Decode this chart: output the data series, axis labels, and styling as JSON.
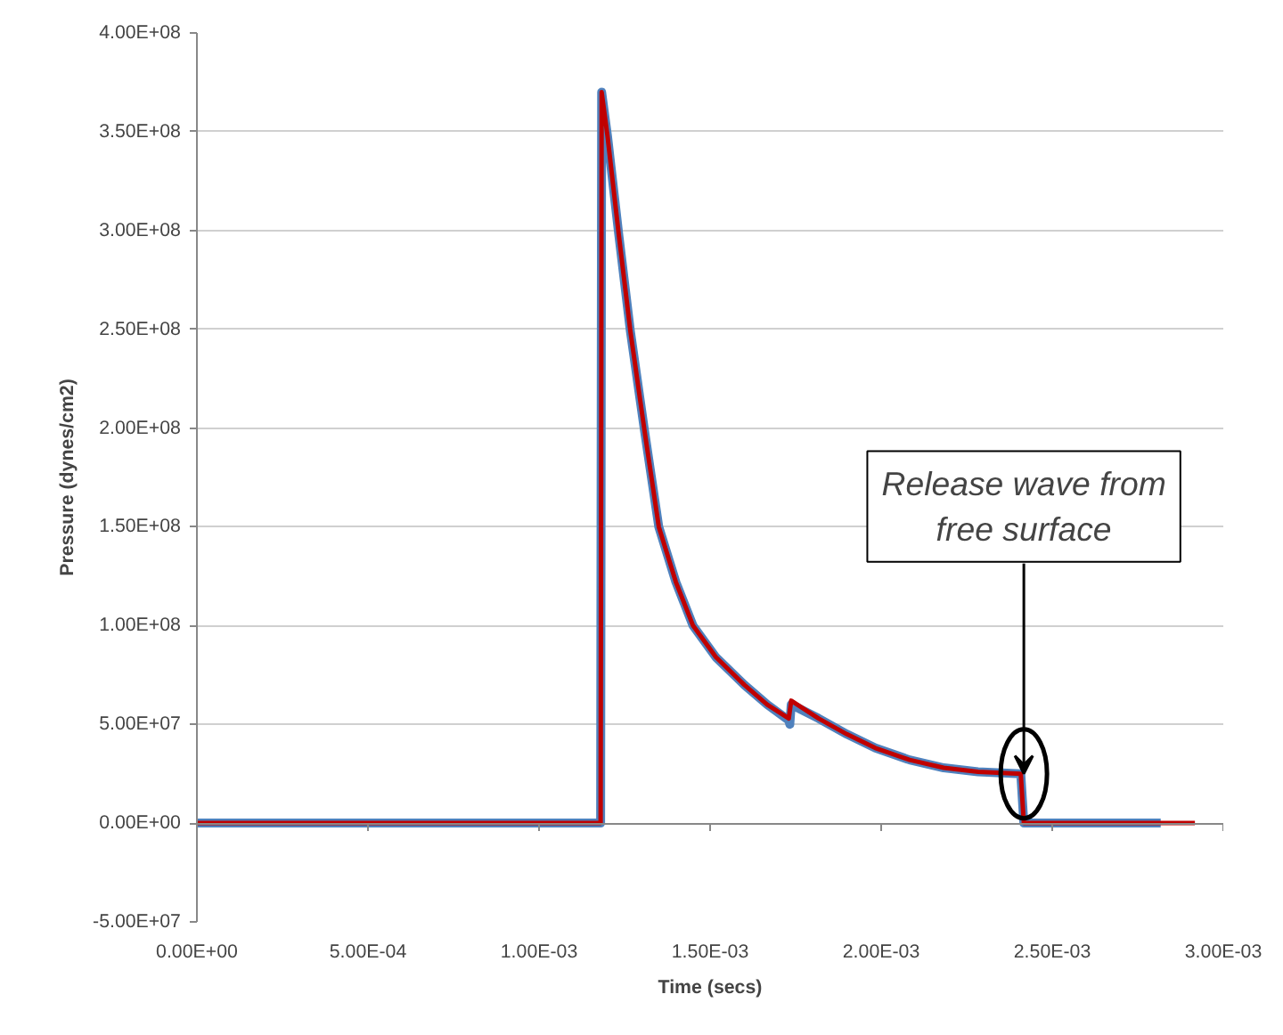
{
  "chart_data": {
    "type": "line",
    "xlabel": "Time (secs)",
    "ylabel": "Pressure (dynes/cm2)",
    "xlim": [
      0,
      0.003
    ],
    "ylim": [
      -50000000,
      400000000
    ],
    "xticks": [
      {
        "value": 0,
        "label": "0.00E+00"
      },
      {
        "value": 0.0005,
        "label": "5.00E-04"
      },
      {
        "value": 0.001,
        "label": "1.00E-03"
      },
      {
        "value": 0.0015,
        "label": "1.50E-03"
      },
      {
        "value": 0.002,
        "label": "2.00E-03"
      },
      {
        "value": 0.0025,
        "label": "2.50E-03"
      },
      {
        "value": 0.003,
        "label": "3.00E-03"
      }
    ],
    "yticks": [
      {
        "value": -50000000,
        "label": "-5.00E+07"
      },
      {
        "value": 0,
        "label": "0.00E+00"
      },
      {
        "value": 50000000,
        "label": "5.00E+07"
      },
      {
        "value": 100000000,
        "label": "1.00E+08"
      },
      {
        "value": 150000000,
        "label": "1.50E+08"
      },
      {
        "value": 200000000,
        "label": "2.00E+08"
      },
      {
        "value": 250000000,
        "label": "2.50E+08"
      },
      {
        "value": 300000000,
        "label": "3.00E+08"
      },
      {
        "value": 350000000,
        "label": "3.50E+08"
      },
      {
        "value": 400000000,
        "label": "4.00E+08"
      }
    ],
    "grid": "y",
    "marker": "none",
    "line_style": "solid",
    "series": [
      {
        "color": "#4f81bd",
        "x": [
          0,
          0.00118,
          0.001183,
          0.0012,
          0.001233,
          0.001267,
          0.001308,
          0.00135,
          0.0014,
          0.00145,
          0.001517,
          0.0016,
          0.001667,
          0.00173,
          0.001733,
          0.001737,
          0.001817,
          0.0019,
          0.001983,
          0.002083,
          0.002183,
          0.002283,
          0.002408,
          0.002417,
          0.002817
        ],
        "values": [
          0,
          0,
          370000000,
          348000000,
          298000000,
          249000000,
          199000000,
          150000000,
          122000000,
          100000000,
          84000000,
          70000000,
          60000000,
          52000000,
          50000000,
          60000000,
          53000000,
          45000000,
          38000000,
          32000000,
          28000000,
          26000000,
          25000000,
          0,
          0
        ]
      },
      {
        "color": "#c00000",
        "x": [
          0,
          0.00118,
          0.001183,
          0.0012,
          0.001233,
          0.001267,
          0.001308,
          0.00135,
          0.0014,
          0.00145,
          0.001517,
          0.0016,
          0.001667,
          0.00173,
          0.001737,
          0.001817,
          0.0019,
          0.001983,
          0.002083,
          0.002183,
          0.002283,
          0.002408,
          0.002417,
          0.002917
        ],
        "values": [
          0,
          0,
          370000000,
          348000000,
          298000000,
          249000000,
          199000000,
          150000000,
          122000000,
          100000000,
          84000000,
          70000000,
          60000000,
          53000000,
          62000000,
          53000000,
          45000000,
          38000000,
          32000000,
          28000000,
          26000000,
          25000000,
          0,
          0
        ]
      }
    ],
    "annotations": [
      {
        "text": "Release wave from\nfree surface",
        "x": 0.002417,
        "y": 25000000
      }
    ]
  }
}
